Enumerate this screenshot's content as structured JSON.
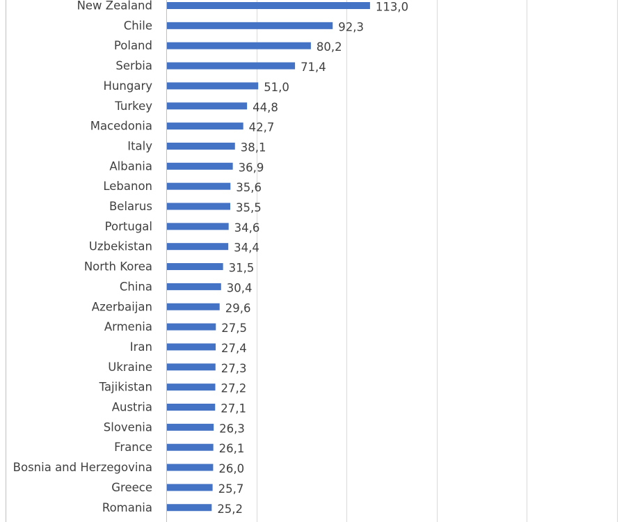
{
  "chart_data": {
    "type": "bar",
    "orientation": "horizontal",
    "categories": [
      "New Zealand",
      "Chile",
      "Poland",
      "Serbia",
      "Hungary",
      "Turkey",
      "Macedonia",
      "Italy",
      "Albania",
      "Lebanon",
      "Belarus",
      "Portugal",
      "Uzbekistan",
      "North Korea",
      "China",
      "Azerbaijan",
      "Armenia",
      "Iran",
      "Ukraine",
      "Tajikistan",
      "Austria",
      "Slovenia",
      "France",
      "Bosnia and Herzegovina",
      "Greece",
      "Romania"
    ],
    "values": [
      113.0,
      92.3,
      80.2,
      71.4,
      51.0,
      44.8,
      42.7,
      38.1,
      36.9,
      35.6,
      35.5,
      34.6,
      34.4,
      31.5,
      30.4,
      29.6,
      27.5,
      27.4,
      27.3,
      27.2,
      27.1,
      26.3,
      26.1,
      26.0,
      25.7,
      25.2
    ],
    "value_labels": [
      "113,0",
      "92,3",
      "80,2",
      "71,4",
      "51,0",
      "44,8",
      "42,7",
      "38,1",
      "36,9",
      "35,6",
      "35,5",
      "34,6",
      "34,4",
      "31,5",
      "30,4",
      "29,6",
      "27,5",
      "27,4",
      "27,3",
      "27,2",
      "27,1",
      "26,3",
      "26,1",
      "26,0",
      "25,7",
      "25,2"
    ],
    "title": "",
    "xlabel": "",
    "ylabel": "",
    "xlim": [
      0,
      250
    ],
    "gridlines_at": [
      50,
      100,
      150,
      200,
      250
    ],
    "grid": true,
    "legend": "none",
    "bar_color": "#4472c4",
    "text_color": "#404040",
    "grid_color": "#d9d9d9"
  }
}
